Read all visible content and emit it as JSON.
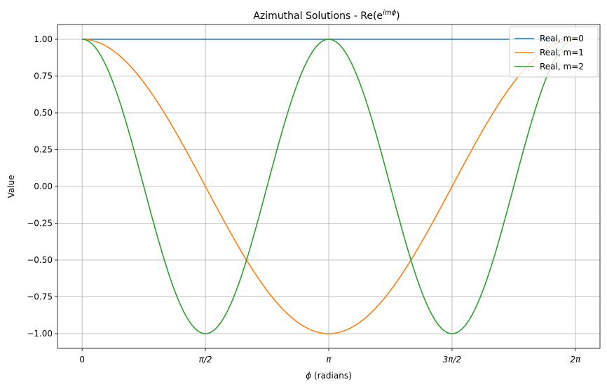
{
  "chart_data": {
    "type": "line",
    "title_prefix": "Azimuthal Solutions - Re(e",
    "title_exp": "imϕ",
    "title_suffix": ")",
    "xlabel_symbol": "ϕ",
    "xlabel_rest": " (radians)",
    "ylabel": "Value",
    "xlim": [
      -0.314,
      6.597
    ],
    "ylim": [
      -1.1,
      1.1
    ],
    "grid": true,
    "legend_position": "top-right",
    "x_ticks": [
      {
        "value": 0,
        "label": "0"
      },
      {
        "value": 1.5708,
        "label": "π/2"
      },
      {
        "value": 3.1416,
        "label": "π"
      },
      {
        "value": 4.7124,
        "label": "3π/2"
      },
      {
        "value": 6.2832,
        "label": "2π"
      }
    ],
    "y_ticks": [
      {
        "value": 1.0,
        "label": "1.00"
      },
      {
        "value": 0.75,
        "label": "0.75"
      },
      {
        "value": 0.5,
        "label": "0.50"
      },
      {
        "value": 0.25,
        "label": "0.25"
      },
      {
        "value": 0.0,
        "label": "0.00"
      },
      {
        "value": -0.25,
        "label": "−0.25"
      },
      {
        "value": -0.5,
        "label": "−0.50"
      },
      {
        "value": -0.75,
        "label": "−0.75"
      },
      {
        "value": -1.0,
        "label": "−1.00"
      }
    ],
    "series": [
      {
        "name": "Real, m=0",
        "color": "#1f77b4",
        "x": [
          0,
          0.7854,
          1.5708,
          2.3562,
          3.1416,
          3.927,
          4.7124,
          5.4978,
          6.2832
        ],
        "y": [
          1.0,
          1.0,
          1.0,
          1.0,
          1.0,
          1.0,
          1.0,
          1.0,
          1.0
        ]
      },
      {
        "name": "Real, m=1",
        "color": "#ff7f0e",
        "x": [
          0,
          0.3927,
          0.7854,
          1.1781,
          1.5708,
          1.9635,
          2.3562,
          2.7489,
          3.1416,
          3.5343,
          3.927,
          4.3197,
          4.7124,
          5.1051,
          5.4978,
          5.8905,
          6.2832
        ],
        "y": [
          1.0,
          0.924,
          0.707,
          0.383,
          0.0,
          -0.383,
          -0.707,
          -0.924,
          -1.0,
          -0.924,
          -0.707,
          -0.383,
          0.0,
          0.383,
          0.707,
          0.924,
          1.0
        ]
      },
      {
        "name": "Real, m=2",
        "color": "#2ca02c",
        "x": [
          0,
          0.1963,
          0.3927,
          0.589,
          0.7854,
          0.9817,
          1.1781,
          1.3744,
          1.5708,
          1.7671,
          1.9635,
          2.1598,
          2.3562,
          2.5525,
          2.7489,
          2.9452,
          3.1416,
          3.3379,
          3.5343,
          3.7306,
          3.927,
          4.1233,
          4.3197,
          4.516,
          4.7124,
          4.9087,
          5.1051,
          5.3014,
          5.4978,
          5.6941,
          5.8905,
          6.0868,
          6.2832
        ],
        "y": [
          1.0,
          0.924,
          0.707,
          0.383,
          0.0,
          -0.383,
          -0.707,
          -0.924,
          -1.0,
          -0.924,
          -0.707,
          -0.383,
          0.0,
          0.383,
          0.707,
          0.924,
          1.0,
          0.924,
          0.707,
          0.383,
          0.0,
          -0.383,
          -0.707,
          -0.924,
          -1.0,
          -0.924,
          -0.707,
          -0.383,
          0.0,
          0.383,
          0.707,
          0.924,
          1.0
        ]
      }
    ]
  }
}
